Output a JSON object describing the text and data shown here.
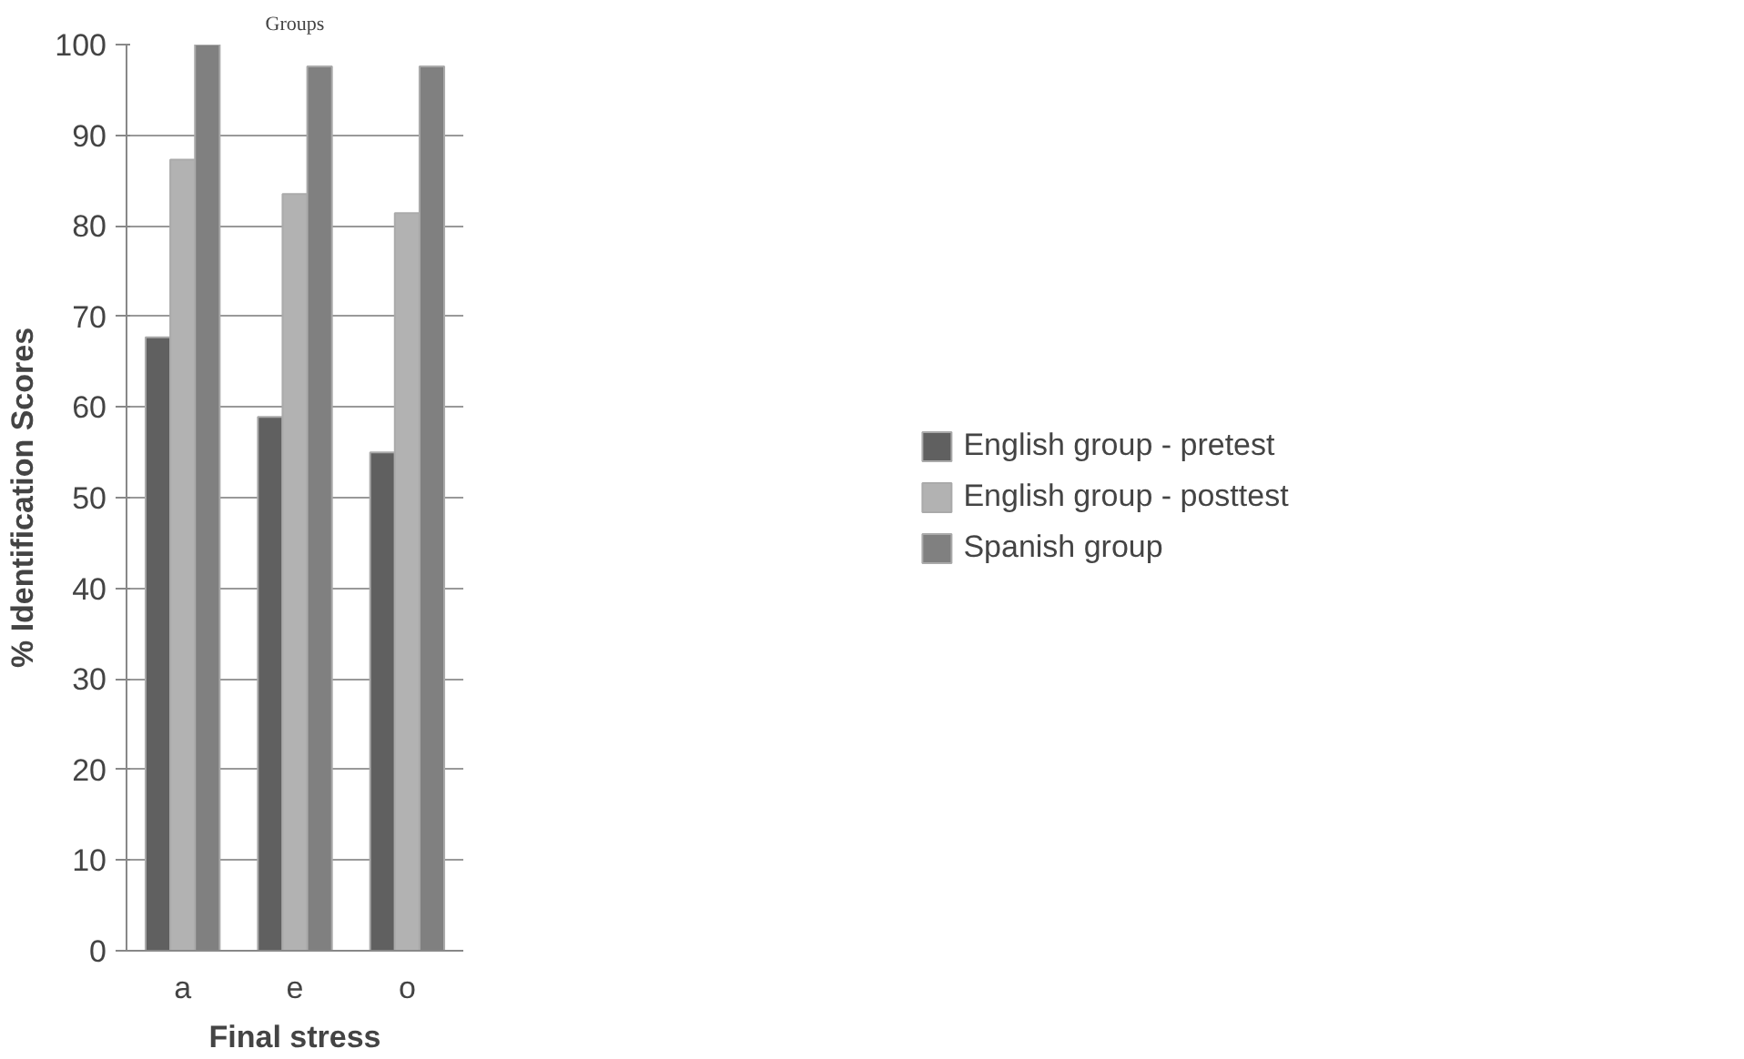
{
  "chart_data": {
    "type": "bar",
    "title": "Groups",
    "xlabel": "Final stress",
    "ylabel": "% Identification Scores",
    "categories": [
      "a",
      "e",
      "o"
    ],
    "series": [
      {
        "name": "English group - pretest",
        "color": "#606060",
        "values": [
          67.7,
          58.9,
          55.0
        ]
      },
      {
        "name": "English group - posttest",
        "color": "#b2b2b2",
        "values": [
          87.3,
          83.5,
          81.4
        ]
      },
      {
        "name": "Spanish group",
        "color": "#808080",
        "values": [
          100,
          97.6,
          97.6
        ]
      }
    ],
    "ylim": [
      0,
      100
    ],
    "yticks": [
      0,
      10,
      20,
      30,
      40,
      50,
      60,
      70,
      80,
      90,
      100
    ],
    "grid": "y",
    "legend": "right"
  }
}
